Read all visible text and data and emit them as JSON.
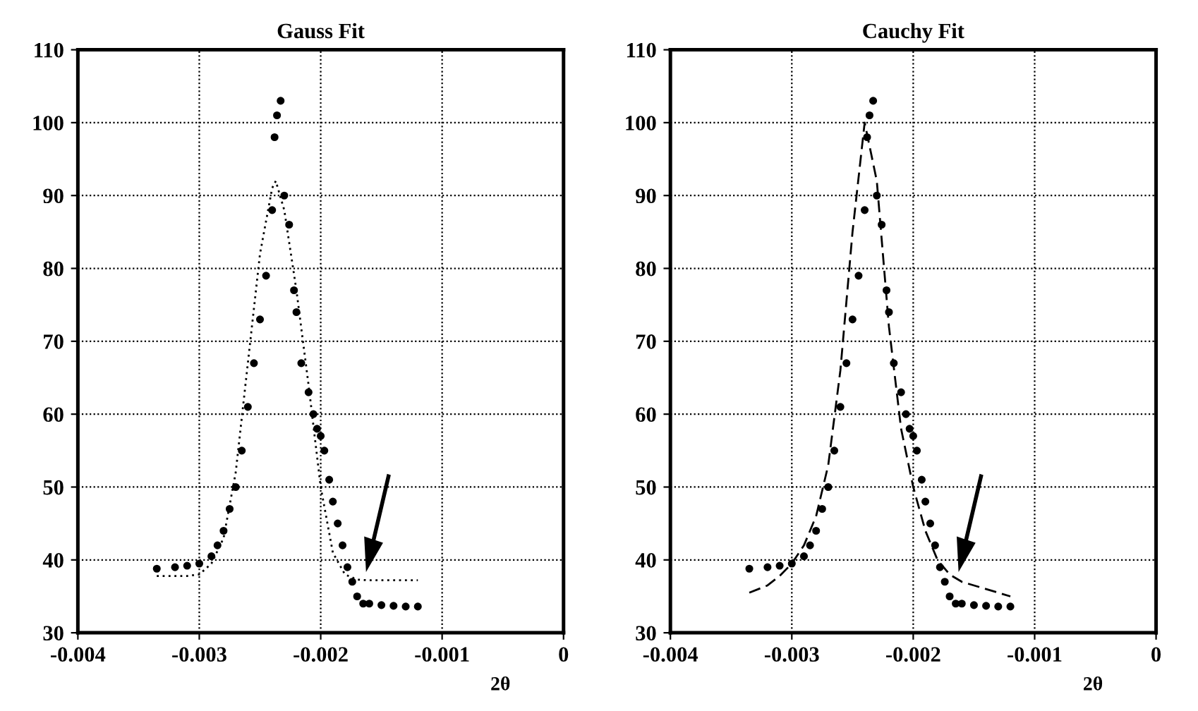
{
  "chart_data": [
    {
      "type": "line",
      "title": "Gauss Fit",
      "xlabel": "2θ",
      "xlim": [
        -0.004,
        0
      ],
      "xticks": [
        -0.004,
        -0.003,
        -0.002,
        -0.001,
        0
      ],
      "ylim": [
        30,
        110
      ],
      "yticks": [
        30,
        40,
        50,
        60,
        70,
        80,
        90,
        100,
        110
      ],
      "grid": true,
      "series": [
        {
          "type": "scatter",
          "marker": "circle",
          "color": "#000000",
          "x": [
            -0.00335,
            -0.0032,
            -0.0031,
            -0.003,
            -0.0029,
            -0.00285,
            -0.0028,
            -0.00275,
            -0.0027,
            -0.00265,
            -0.0026,
            -0.00255,
            -0.0025,
            -0.00245,
            -0.0024,
            -0.00238,
            -0.00236,
            -0.00233,
            -0.0023,
            -0.00226,
            -0.00222,
            -0.0022,
            -0.00216,
            -0.0021,
            -0.00206,
            -0.00203,
            -0.002,
            -0.00197,
            -0.00193,
            -0.0019,
            -0.00186,
            -0.00182,
            -0.00178,
            -0.00174,
            -0.0017,
            -0.00165,
            -0.0016,
            -0.0015,
            -0.0014,
            -0.0013,
            -0.0012
          ],
          "values": [
            38.8,
            39,
            39.2,
            39.5,
            40.5,
            42,
            44,
            47,
            50,
            55,
            61,
            67,
            73,
            79,
            88,
            98,
            101,
            103,
            90,
            86,
            77,
            74,
            67,
            63,
            60,
            58,
            57,
            55,
            51,
            48,
            45,
            42,
            39,
            37,
            35,
            34,
            34,
            33.8,
            33.7,
            33.6,
            33.6
          ]
        },
        {
          "line_style": "dotted",
          "color": "#000000",
          "x": [
            -0.00335,
            -0.0031,
            -0.003,
            -0.0029,
            -0.0028,
            -0.0027,
            -0.0026,
            -0.0025,
            -0.0024,
            -0.00237,
            -0.0023,
            -0.0022,
            -0.0021,
            -0.002,
            -0.0019,
            -0.0018,
            -0.0017,
            -0.0016,
            -0.0012
          ],
          "values": [
            37.8,
            37.8,
            38,
            39.5,
            43,
            52,
            67,
            82,
            91,
            92,
            88,
            77,
            64,
            50,
            41,
            38,
            37.3,
            37.2,
            37.2
          ]
        }
      ]
    },
    {
      "type": "line",
      "title": "Cauchy Fit",
      "xlabel": "2θ",
      "xlim": [
        -0.004,
        0
      ],
      "xticks": [
        -0.004,
        -0.003,
        -0.002,
        -0.001,
        0
      ],
      "ylim": [
        30,
        110
      ],
      "yticks": [
        30,
        40,
        50,
        60,
        70,
        80,
        90,
        100,
        110
      ],
      "grid": true,
      "series": [
        {
          "type": "scatter",
          "marker": "circle",
          "color": "#000000",
          "x": [
            -0.00335,
            -0.0032,
            -0.0031,
            -0.003,
            -0.0029,
            -0.00285,
            -0.0028,
            -0.00275,
            -0.0027,
            -0.00265,
            -0.0026,
            -0.00255,
            -0.0025,
            -0.00245,
            -0.0024,
            -0.00238,
            -0.00236,
            -0.00233,
            -0.0023,
            -0.00226,
            -0.00222,
            -0.0022,
            -0.00216,
            -0.0021,
            -0.00206,
            -0.00203,
            -0.002,
            -0.00197,
            -0.00193,
            -0.0019,
            -0.00186,
            -0.00182,
            -0.00178,
            -0.00174,
            -0.0017,
            -0.00165,
            -0.0016,
            -0.0015,
            -0.0014,
            -0.0013,
            -0.0012
          ],
          "values": [
            38.8,
            39,
            39.2,
            39.5,
            40.5,
            42,
            44,
            47,
            50,
            55,
            61,
            67,
            73,
            79,
            88,
            98,
            101,
            103,
            90,
            86,
            77,
            74,
            67,
            63,
            60,
            58,
            57,
            55,
            51,
            48,
            45,
            42,
            39,
            37,
            35,
            34,
            34,
            33.8,
            33.7,
            33.6,
            33.6
          ]
        },
        {
          "line_style": "dashed",
          "color": "#000000",
          "x": [
            -0.00335,
            -0.0032,
            -0.0031,
            -0.003,
            -0.0029,
            -0.0028,
            -0.0027,
            -0.0026,
            -0.0025,
            -0.0024,
            -0.0023,
            -0.0022,
            -0.0021,
            -0.002,
            -0.0019,
            -0.0018,
            -0.0017,
            -0.0016,
            -0.0014,
            -0.0012
          ],
          "values": [
            35.5,
            36.5,
            37.8,
            39.5,
            42,
            46,
            53,
            66,
            85,
            100,
            92,
            72,
            58,
            50,
            44,
            40,
            38,
            37,
            36,
            35
          ]
        }
      ]
    }
  ]
}
